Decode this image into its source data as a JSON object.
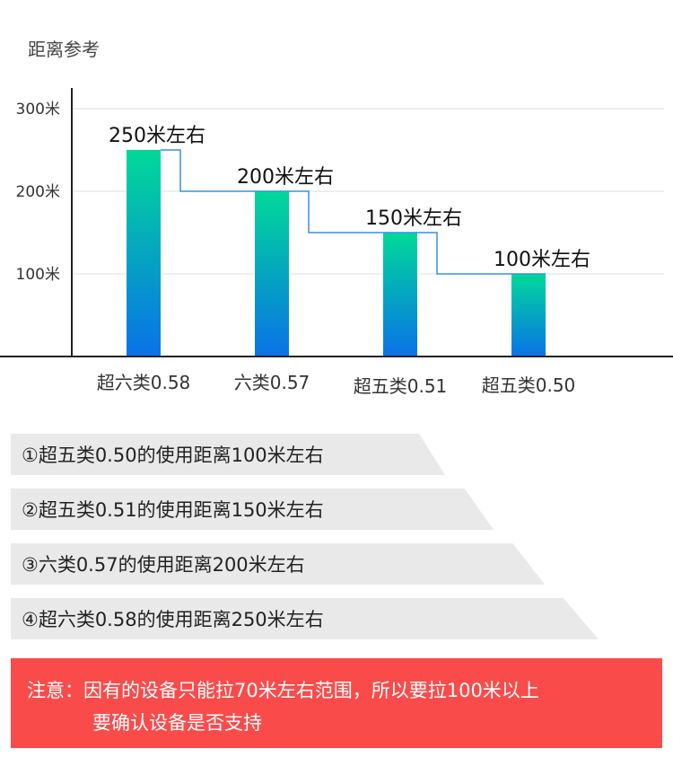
{
  "chart_data": {
    "type": "bar",
    "title": "距离参考",
    "categories": [
      "超六类0.58",
      "六类0.57",
      "超五类0.51",
      "超五类0.50"
    ],
    "values": [
      250,
      200,
      150,
      100
    ],
    "data_labels": [
      "250米左右",
      "200米左右",
      "150米左右",
      "100米左右"
    ],
    "y_ticks": [
      "100米",
      "200米",
      "300米"
    ],
    "ylim": [
      0,
      300
    ],
    "grid": true,
    "bar_colors": [
      "#00d99a",
      "#0a72e8"
    ],
    "step_line_color": "#3a8fe0"
  },
  "info_rows": [
    "①超五类0.50的使用距离100米左右",
    "②超五类0.51的使用距离150米左右",
    "③六类0.57的使用距离200米左右",
    "④超六类0.58的使用距离250米左右"
  ],
  "notice": {
    "line1": "注意：因有的设备只能拉70米左右范围，所以要拉100米以上",
    "line2": "要确认设备是否支持",
    "background": "#fa4b4b"
  }
}
